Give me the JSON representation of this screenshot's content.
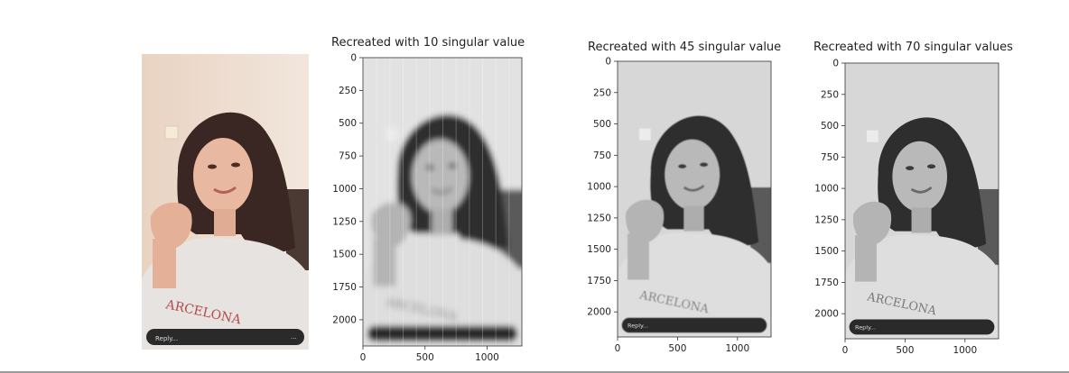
{
  "original": {
    "reply_text": "Reply..."
  },
  "chart_data": [
    {
      "type": "image",
      "title": "Recreated with 10 singular value",
      "xticks": [
        0,
        500,
        1000
      ],
      "yticks": [
        0,
        250,
        500,
        750,
        1000,
        1250,
        1500,
        1750,
        2000
      ],
      "xlim": [
        0,
        1280
      ],
      "ylim": [
        2200,
        0
      ],
      "reply_text": ""
    },
    {
      "type": "image",
      "title": "Recreated with 45 singular value",
      "xticks": [
        0,
        500,
        1000
      ],
      "yticks": [
        0,
        250,
        500,
        750,
        1000,
        1250,
        1500,
        1750,
        2000
      ],
      "xlim": [
        0,
        1280
      ],
      "ylim": [
        2200,
        0
      ],
      "reply_text": "Reply..."
    },
    {
      "type": "image",
      "title": "Recreated with 70 singular values",
      "xticks": [
        0,
        500,
        1000
      ],
      "yticks": [
        0,
        250,
        500,
        750,
        1000,
        1250,
        1500,
        1750,
        2000
      ],
      "xlim": [
        0,
        1280
      ],
      "ylim": [
        2200,
        0
      ],
      "reply_text": "Reply..."
    }
  ]
}
